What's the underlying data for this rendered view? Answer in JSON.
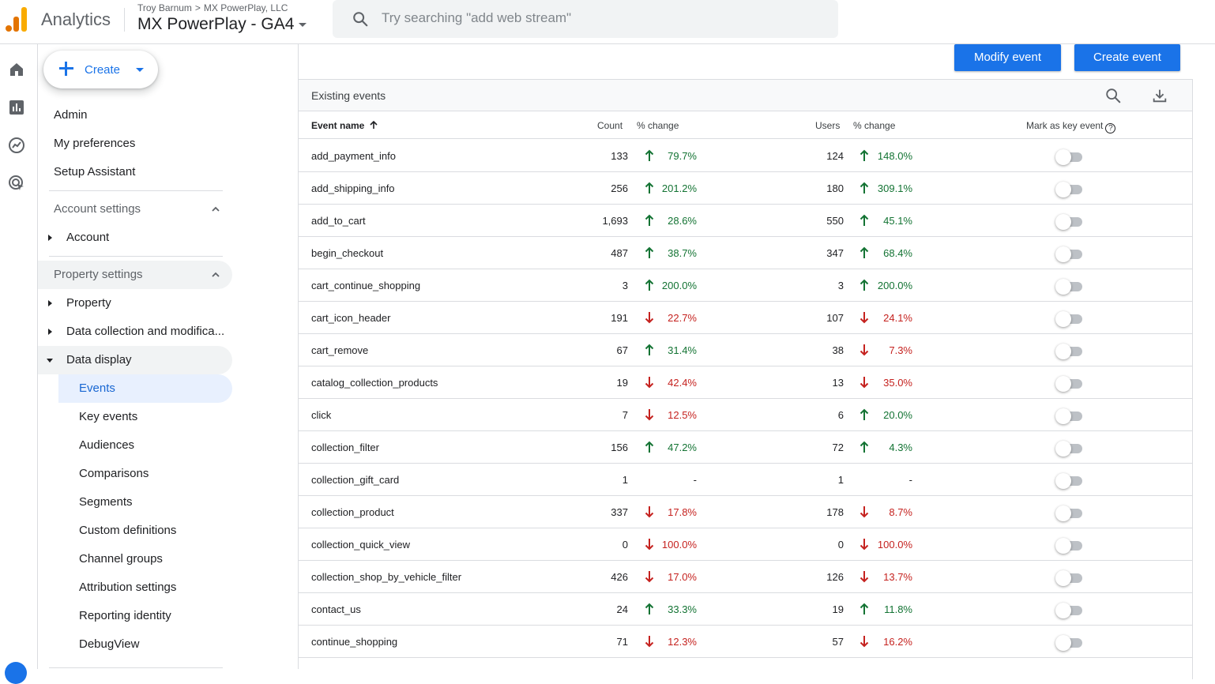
{
  "header": {
    "app_name": "Analytics",
    "breadcrumb": [
      "Troy Barnum",
      "MX PowerPlay, LLC"
    ],
    "property_name": "MX PowerPlay - GA4",
    "search_placeholder": "Try searching \"add web stream\"",
    "search_value": ""
  },
  "rail": {
    "icons": [
      "home-icon",
      "reports-icon",
      "explore-icon",
      "advertising-icon"
    ]
  },
  "sidebar": {
    "create_label": "Create",
    "top_items": [
      "Admin",
      "My preferences",
      "Setup Assistant"
    ],
    "account_settings_title": "Account settings",
    "account_items": [
      "Account"
    ],
    "property_settings_title": "Property settings",
    "property_items": [
      "Property",
      "Data collection and modifica...",
      "Data display"
    ],
    "data_display_items": [
      "Events",
      "Key events",
      "Audiences",
      "Comparisons",
      "Segments",
      "Custom definitions",
      "Channel groups",
      "Attribution settings",
      "Reporting identity",
      "DebugView"
    ],
    "active_item": "Events"
  },
  "main": {
    "modify_event_label": "Modify event",
    "create_event_label": "Create event",
    "card_title": "Existing events",
    "columns": {
      "event_name": "Event name",
      "count": "Count",
      "count_change": "% change",
      "users": "Users",
      "users_change": "% change",
      "mark_key": "Mark as key event",
      "help": "?"
    },
    "rows": [
      {
        "name": "add_payment_info",
        "count": "133",
        "count_dir": "up",
        "count_pct": "79.7%",
        "users": "124",
        "users_dir": "up",
        "users_pct": "148.0%",
        "key_event": false
      },
      {
        "name": "add_shipping_info",
        "count": "256",
        "count_dir": "up",
        "count_pct": "201.2%",
        "users": "180",
        "users_dir": "up",
        "users_pct": "309.1%",
        "key_event": false
      },
      {
        "name": "add_to_cart",
        "count": "1,693",
        "count_dir": "up",
        "count_pct": "28.6%",
        "users": "550",
        "users_dir": "up",
        "users_pct": "45.1%",
        "key_event": false
      },
      {
        "name": "begin_checkout",
        "count": "487",
        "count_dir": "up",
        "count_pct": "38.7%",
        "users": "347",
        "users_dir": "up",
        "users_pct": "68.4%",
        "key_event": false
      },
      {
        "name": "cart_continue_shopping",
        "count": "3",
        "count_dir": "up",
        "count_pct": "200.0%",
        "users": "3",
        "users_dir": "up",
        "users_pct": "200.0%",
        "key_event": false
      },
      {
        "name": "cart_icon_header",
        "count": "191",
        "count_dir": "down",
        "count_pct": "22.7%",
        "users": "107",
        "users_dir": "down",
        "users_pct": "24.1%",
        "key_event": false
      },
      {
        "name": "cart_remove",
        "count": "67",
        "count_dir": "up",
        "count_pct": "31.4%",
        "users": "38",
        "users_dir": "down",
        "users_pct": "7.3%",
        "key_event": false
      },
      {
        "name": "catalog_collection_products",
        "count": "19",
        "count_dir": "down",
        "count_pct": "42.4%",
        "users": "13",
        "users_dir": "down",
        "users_pct": "35.0%",
        "key_event": false
      },
      {
        "name": "click",
        "count": "7",
        "count_dir": "down",
        "count_pct": "12.5%",
        "users": "6",
        "users_dir": "up",
        "users_pct": "20.0%",
        "key_event": false
      },
      {
        "name": "collection_filter",
        "count": "156",
        "count_dir": "up",
        "count_pct": "47.2%",
        "users": "72",
        "users_dir": "up",
        "users_pct": "4.3%",
        "key_event": false
      },
      {
        "name": "collection_gift_card",
        "count": "1",
        "count_dir": "none",
        "count_pct": "-",
        "users": "1",
        "users_dir": "none",
        "users_pct": "-",
        "key_event": false
      },
      {
        "name": "collection_product",
        "count": "337",
        "count_dir": "down",
        "count_pct": "17.8%",
        "users": "178",
        "users_dir": "down",
        "users_pct": "8.7%",
        "key_event": false
      },
      {
        "name": "collection_quick_view",
        "count": "0",
        "count_dir": "down",
        "count_pct": "100.0%",
        "users": "0",
        "users_dir": "down",
        "users_pct": "100.0%",
        "key_event": false
      },
      {
        "name": "collection_shop_by_vehicle_filter",
        "count": "426",
        "count_dir": "down",
        "count_pct": "17.0%",
        "users": "126",
        "users_dir": "down",
        "users_pct": "13.7%",
        "key_event": false
      },
      {
        "name": "contact_us",
        "count": "24",
        "count_dir": "up",
        "count_pct": "33.3%",
        "users": "19",
        "users_dir": "up",
        "users_pct": "11.8%",
        "key_event": false
      },
      {
        "name": "continue_shopping",
        "count": "71",
        "count_dir": "down",
        "count_pct": "12.3%",
        "users": "57",
        "users_dir": "down",
        "users_pct": "16.2%",
        "key_event": false
      }
    ]
  },
  "colors": {
    "accent": "#1a73e8",
    "positive": "#137333",
    "negative": "#c5221f",
    "logo_orange": "#e37400",
    "logo_yellow": "#f9ab00"
  }
}
